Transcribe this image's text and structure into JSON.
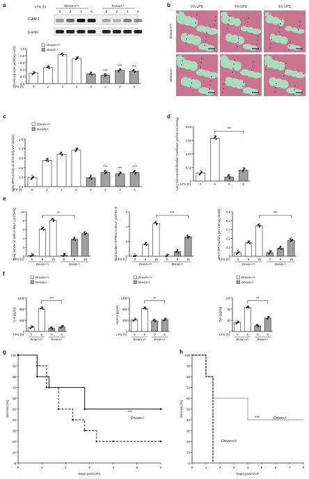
{
  "letters": [
    "a",
    "b",
    "c",
    "d",
    "e",
    "f",
    "g",
    "h"
  ],
  "genotype_wt": "Dream+/+",
  "genotype_ko": "Dream-/-",
  "lps_label": "LPS (h)",
  "sig3": "***",
  "sig2": "**",
  "panel_a": {
    "blot_labels": [
      "ICAM-1",
      "β-actin"
    ],
    "lps_times": [
      "0",
      "2",
      "4",
      "6",
      "0",
      "2",
      "4",
      "6"
    ],
    "colors": {
      "wt": "#ffffff",
      "ko": "#9b9b9b"
    }
  },
  "panel_b": {
    "columns": [
      "0 h LPS",
      "4 h LPS",
      "6 h LPS"
    ],
    "rows": [
      "Dream+/+",
      "Dream-/-"
    ],
    "colors": {
      "tissue": "#c9758f",
      "airspace": "#a8dcc3",
      "nuclei": "#5a3f8a"
    }
  },
  "chart_data": [
    {
      "panel": "a",
      "type": "bar",
      "ylabel": "ICAM-1/β-actin (arbitrary units)",
      "ylim": [
        0,
        1.0
      ],
      "yticks": [
        "0.0",
        "0.2",
        "0.4",
        "0.6",
        "0.8",
        "1.0"
      ],
      "categories": [
        "0",
        "2",
        "4",
        "6",
        "0",
        "2",
        "4",
        "6"
      ],
      "series": [
        {
          "name": "Dream+/+",
          "values": [
            0.3,
            0.46,
            0.83,
            0.72,
            0.28,
            0.24,
            0.38,
            0.36
          ]
        }
      ],
      "legend": [
        "Dream+/+",
        "Dream-/-"
      ]
    },
    {
      "panel": "c",
      "type": "bar",
      "ylabel": "Lung MPO Activity (Δ Abs/min/g wet weight)",
      "ylim": [
        0,
        1.0
      ],
      "yticks": [
        "0.0",
        "0.2",
        "0.4",
        "0.6",
        "0.8",
        "1.0"
      ],
      "categories": [
        "0",
        "2",
        "4",
        "6",
        "0",
        "2",
        "4",
        "6"
      ],
      "series": [
        {
          "name": "Dream+/+",
          "values": [
            0.19,
            0.55,
            0.68,
            0.77,
            0.19,
            0.3,
            0.27,
            0.3
          ]
        }
      ],
      "legend": [
        "Dream+/+",
        "Dream-/-"
      ]
    },
    {
      "panel": "d",
      "type": "bar",
      "ylabel": "Lung microvessel filtration Coefficient (ml/min cm H2O/g)",
      "ylim": [
        0,
        0.08
      ],
      "yticks": [
        "0",
        "0.02",
        "0.04",
        "0.06",
        "0.08"
      ],
      "categories": [
        "0",
        "6",
        "0",
        "6"
      ],
      "series": [
        {
          "name": "Dream+/+",
          "values": [
            0.012,
            0.063,
            0.006,
            0.016
          ]
        }
      ]
    },
    {
      "panel": "e1",
      "type": "bar",
      "ylabel": "Total number of cells in BALF (x10^5/ml)",
      "ylim": [
        0,
        10
      ],
      "yticks": [
        "0",
        "2",
        "4",
        "6",
        "8",
        "10"
      ],
      "categories": [
        "0",
        "6",
        "10",
        "0",
        "6",
        "10"
      ],
      "series": [
        {
          "name": "Dream+/+",
          "values": [
            0.2,
            6.1,
            8.1,
            0.2,
            3.8,
            5.1
          ]
        }
      ]
    },
    {
      "panel": "e2",
      "type": "bar",
      "ylabel": "Total number of PMNs in BALF (x10^5/ml)",
      "ylim": [
        0,
        6
      ],
      "yticks": [
        "0",
        "2",
        "4",
        "6"
      ],
      "categories": [
        "0",
        "6",
        "10",
        "0",
        "6",
        "10"
      ],
      "series": [
        {
          "name": "Dream+/+",
          "values": [
            0.0,
            1.6,
            4.4,
            0.0,
            0.6,
            2.6
          ]
        }
      ]
    },
    {
      "panel": "e3",
      "type": "bar",
      "ylabel": "BALF MPO activity (per 100 μg protein)",
      "ylim": [
        0,
        0.5
      ],
      "yticks": [
        "0",
        "0.1",
        "0.2",
        "0.3",
        "0.4",
        "0.5"
      ],
      "categories": [
        "0",
        "6",
        "10",
        "0",
        "6",
        "10"
      ],
      "series": [
        {
          "name": "Dream+/+",
          "values": [
            0.04,
            0.15,
            0.34,
            0.04,
            0.09,
            0.18
          ]
        }
      ]
    },
    {
      "panel": "f1",
      "type": "bar",
      "ylabel": "IL-6 (pg/ml)",
      "ylim": [
        0,
        1200
      ],
      "yticks": [
        "0",
        "400",
        "800",
        "1200"
      ],
      "categories": [
        "0",
        "6",
        "0",
        "6"
      ],
      "series": [
        {
          "name": "Dream+/+",
          "values": [
            150,
            820,
            110,
            160
          ]
        }
      ],
      "legend": [
        "Dream+/+",
        "Dream-/-"
      ]
    },
    {
      "panel": "f2",
      "type": "bar",
      "ylabel": "MCP-1 (pg/ml)",
      "ylim": [
        0,
        1200
      ],
      "yticks": [
        "0",
        "400",
        "800",
        "1200"
      ],
      "categories": [
        "0",
        "6",
        "0",
        "6"
      ],
      "series": [
        {
          "name": "Dream+/+",
          "values": [
            420,
            820,
            380,
            420
          ]
        }
      ],
      "legend": [
        "Dream+/+",
        "Dream-/-"
      ]
    },
    {
      "panel": "f3",
      "type": "bar",
      "ylabel": "TNF (pg/ml)",
      "ylim": [
        0,
        120
      ],
      "yticks": [
        "0",
        "40",
        "80",
        "120"
      ],
      "categories": [
        "0",
        "6",
        "0",
        "6"
      ],
      "series": [
        {
          "name": "Dream+/+",
          "values": [
            32,
            86,
            20,
            48
          ]
        }
      ],
      "legend": [
        "Dream+/+",
        "Dream-/-"
      ]
    },
    {
      "panel": "g",
      "type": "line",
      "xlabel": "Days post-LPS",
      "ylabel": "Survival (%)",
      "xlim": [
        0,
        6
      ],
      "ylim": [
        0,
        100
      ],
      "xticks": [
        "0",
        "1",
        "2",
        "3",
        "4",
        "5",
        "6"
      ],
      "yticks": [
        "0",
        "10",
        "20",
        "30",
        "40",
        "50",
        "60",
        "70",
        "80",
        "90",
        "100"
      ],
      "series": [
        {
          "name": "Dream+/+",
          "x": [
            0,
            0.8,
            0.8,
            1.2,
            1.2,
            1.7,
            1.7,
            2.3,
            2.3,
            2.8,
            2.8,
            3.3,
            3.3,
            4.0,
            4.0,
            6.0
          ],
          "y": [
            100,
            100,
            90,
            90,
            70,
            70,
            50,
            50,
            40,
            40,
            30,
            30,
            20,
            20,
            20,
            20
          ]
        },
        {
          "name": "Dream-/-",
          "x": [
            0,
            0.8,
            0.8,
            1.3,
            1.3,
            2.8,
            2.8,
            6.0
          ],
          "y": [
            100,
            100,
            80,
            80,
            70,
            70,
            50,
            50
          ]
        }
      ],
      "annotations": [
        "Dream-/-",
        "***"
      ]
    },
    {
      "panel": "h",
      "type": "line",
      "xlabel": "Days post-CLP",
      "ylabel": "Survival (%)",
      "xlim": [
        0,
        8
      ],
      "ylim": [
        0,
        100
      ],
      "xticks": [
        "0",
        "1",
        "2",
        "3",
        "4",
        "5",
        "6",
        "7",
        "8"
      ],
      "yticks": [
        "0",
        "10",
        "20",
        "30",
        "40",
        "50",
        "60",
        "70",
        "80",
        "90",
        "100"
      ],
      "series": [
        {
          "name": "Dream-/-",
          "x": [
            0,
            1.0,
            1.0,
            1.5,
            1.5,
            2.0,
            2.0,
            4.0,
            4.0,
            8.0
          ],
          "y": [
            100,
            100,
            80,
            80,
            60,
            60,
            60,
            60,
            40,
            40
          ]
        },
        {
          "name": "Dream+/+",
          "x": [
            0,
            1.0,
            1.0,
            1.5,
            1.5
          ],
          "y": [
            100,
            100,
            80,
            80,
            0
          ]
        }
      ],
      "annotations": [
        "***",
        "Dream-/-",
        "Dream+/+"
      ]
    }
  ]
}
